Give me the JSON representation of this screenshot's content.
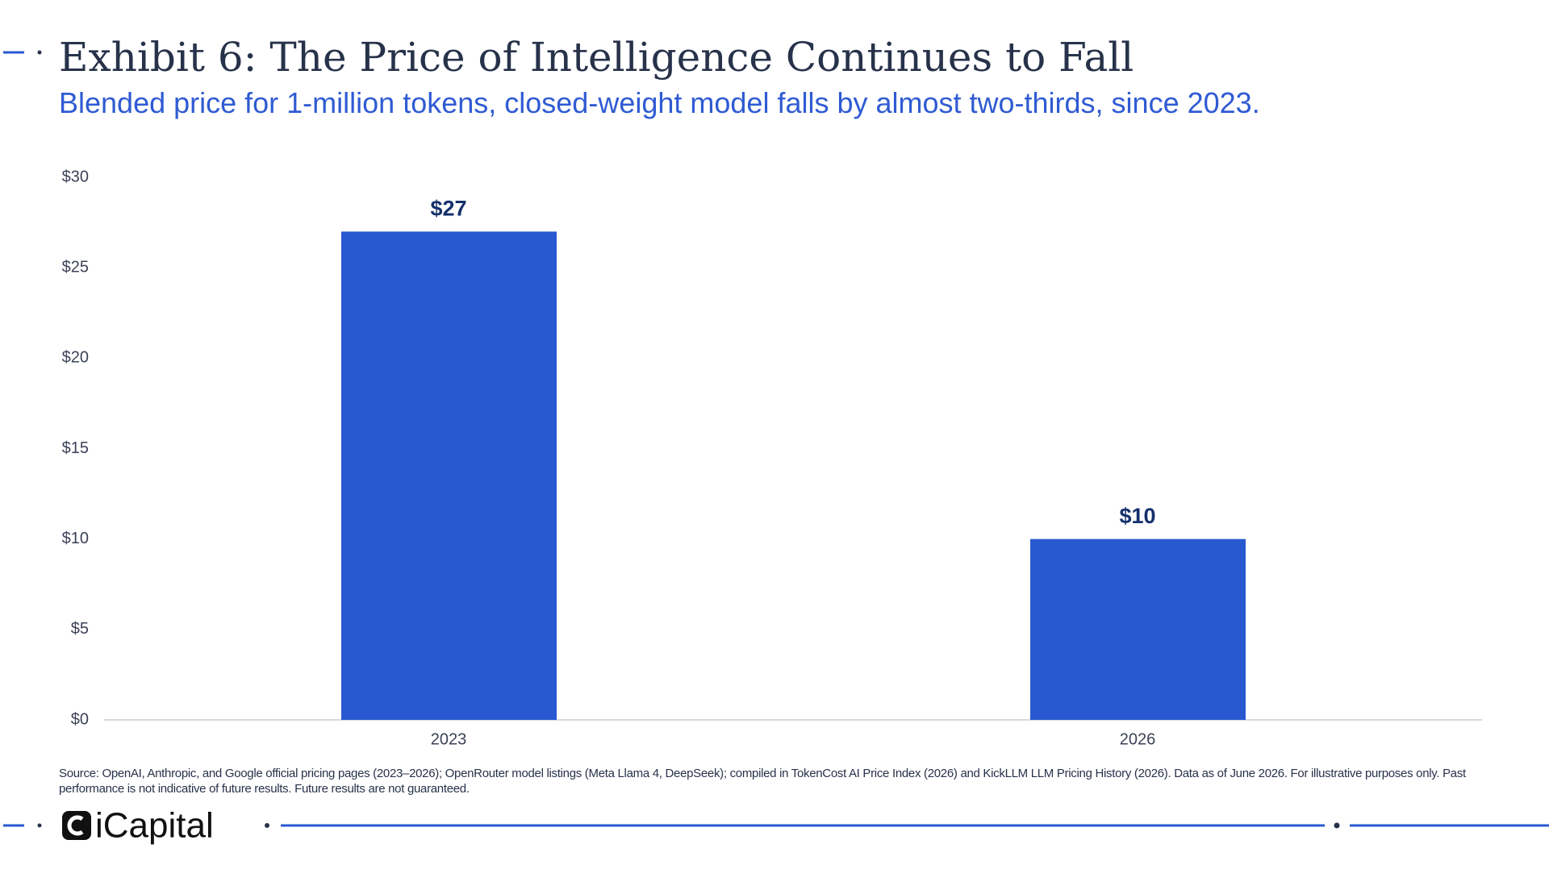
{
  "chart_data": {
    "type": "bar",
    "title": "Exhibit 6: The Price of Intelligence Continues to Fall",
    "subtitle": "Blended price for 1-million tokens, closed-weight model falls by almost two-thirds, since 2023.",
    "categories": [
      "2023",
      "2026"
    ],
    "values": [
      27,
      10
    ],
    "value_labels": [
      "$27",
      "$10"
    ],
    "color": "#2859d1",
    "ylim": [
      0,
      30
    ],
    "yticks": [
      {
        "value": 0,
        "label": "$0"
      },
      {
        "value": 5,
        "label": "$5"
      },
      {
        "value": 10,
        "label": "$10"
      },
      {
        "value": 15,
        "label": "$15"
      },
      {
        "value": 20,
        "label": "$20"
      },
      {
        "value": 25,
        "label": "$25"
      },
      {
        "value": 30,
        "label": "$30"
      }
    ],
    "grid": false,
    "source": "Source: OpenAI, Anthropic, and Google official pricing pages (2023–2026); OpenRouter model listings (Meta Llama 4, DeepSeek); compiled in TokenCost AI Price Index (2026) and KickLLM LLM Pricing History (2026). Data as of June 2026. For illustrative purposes only. Past performance is not indicative of future results. Future results are not guaranteed."
  },
  "footer": {
    "logo": "iCapital"
  }
}
